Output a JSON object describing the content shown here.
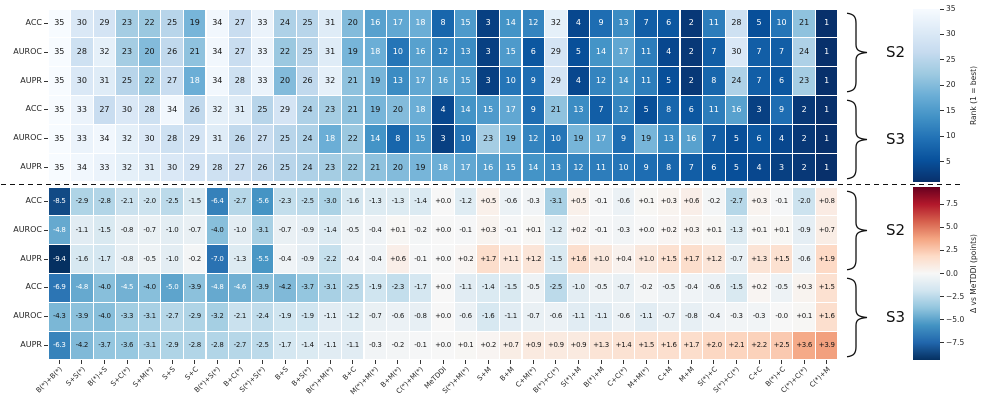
{
  "chart_data": {
    "type": "heatmap",
    "columns": [
      "B(*)+B(*)",
      "S+S(*)",
      "B(*)+S",
      "S+C(*)",
      "S+M(*)",
      "S+S",
      "S+C",
      "B(*)+S(*)",
      "B+C(*)",
      "S(*)+S(*)",
      "B+S",
      "B+S(*)",
      "B(*)+M(*)",
      "B+C",
      "M(*)+M(*)",
      "B+M(*)",
      "C(*)+M(*)",
      "MeTDDI",
      "S(*)+M(*)",
      "S+M",
      "B+M",
      "C+M(*)",
      "B(*)+C(*)",
      "S(*)+M",
      "B(*)+M",
      "C+C(*)",
      "M+M(*)",
      "C+M",
      "M+M",
      "S(*)+C",
      "S(*)+C(*)",
      "C+C",
      "B(*)+C",
      "C(*)+C(*)",
      "C(*)+M"
    ],
    "group_braces": [
      "S2",
      "S3",
      "S2",
      "S3"
    ],
    "top": {
      "metric_rows": [
        {
          "group": "S2",
          "label": "ACC",
          "values": [
            35,
            30,
            29,
            23,
            22,
            25,
            19,
            34,
            27,
            33,
            24,
            25,
            31,
            20,
            16,
            17,
            18,
            8,
            15,
            3,
            14,
            12,
            32,
            4,
            9,
            13,
            7,
            6,
            2,
            11,
            28,
            5,
            10,
            21,
            1
          ]
        },
        {
          "group": "S2",
          "label": "AUROC",
          "values": [
            35,
            28,
            32,
            23,
            20,
            26,
            21,
            34,
            27,
            33,
            22,
            25,
            31,
            19,
            18,
            10,
            16,
            12,
            13,
            3,
            15,
            6,
            29,
            5,
            14,
            17,
            11,
            4,
            2,
            7,
            30,
            7,
            7,
            24,
            1
          ]
        },
        {
          "group": "S2",
          "label": "AUPR",
          "values": [
            35,
            30,
            31,
            25,
            22,
            27,
            18,
            34,
            28,
            33,
            20,
            26,
            32,
            21,
            19,
            13,
            17,
            16,
            15,
            3,
            10,
            9,
            29,
            4,
            12,
            14,
            11,
            5,
            2,
            8,
            24,
            7,
            6,
            23,
            1
          ]
        },
        {
          "group": "S3",
          "label": "ACC",
          "values": [
            35,
            33,
            27,
            30,
            28,
            34,
            26,
            32,
            31,
            25,
            29,
            24,
            23,
            21,
            19,
            20,
            18,
            4,
            14,
            15,
            17,
            9,
            21,
            13,
            7,
            12,
            5,
            8,
            6,
            11,
            16,
            3,
            9,
            2,
            1
          ]
        },
        {
          "group": "S3",
          "label": "AUROC",
          "values": [
            35,
            33,
            34,
            32,
            30,
            28,
            29,
            31,
            26,
            27,
            25,
            24,
            18,
            22,
            14,
            8,
            15,
            3,
            10,
            23,
            19,
            12,
            10,
            19,
            17,
            9,
            19,
            13,
            16,
            7,
            5,
            6,
            4,
            2,
            1
          ]
        },
        {
          "group": "S3",
          "label": "AUPR",
          "values": [
            35,
            34,
            33,
            32,
            31,
            30,
            29,
            28,
            27,
            26,
            25,
            24,
            23,
            22,
            21,
            20,
            19,
            18,
            17,
            16,
            15,
            14,
            13,
            12,
            11,
            10,
            9,
            8,
            7,
            6,
            5,
            4,
            3,
            2,
            1
          ]
        }
      ],
      "colorbar": {
        "title": "Rank (1 = best)",
        "vmin": 1,
        "vmax": 35,
        "ticks": [
          "35",
          "30",
          "25",
          "20",
          "15",
          "10",
          "5"
        ],
        "colormap": [
          "#08306b",
          "#08519c",
          "#2171b5",
          "#4292c6",
          "#6baed6",
          "#9ecae1",
          "#c6dbef",
          "#deebf7",
          "#f7fbff"
        ]
      }
    },
    "bottom": {
      "metric_rows": [
        {
          "group": "S2",
          "label": "ACC",
          "values": [
            "-8.5",
            "-2.9",
            "-2.8",
            "-2.1",
            "-2.0",
            "-2.5",
            "-1.5",
            "-6.4",
            "-2.7",
            "-5.6",
            "-2.3",
            "-2.5",
            "-3.0",
            "-1.6",
            "-1.3",
            "-1.3",
            "-1.4",
            "+0.0",
            "-1.2",
            "+0.5",
            "-0.6",
            "-0.3",
            "-3.1",
            "+0.5",
            "-0.1",
            "-0.6",
            "+0.1",
            "+0.3",
            "+0.6",
            "-0.2",
            "-2.7",
            "+0.3",
            "-0.1",
            "-2.0",
            "+0.8"
          ]
        },
        {
          "group": "S2",
          "label": "AUROC",
          "values": [
            "-4.8",
            "-1.1",
            "-1.5",
            "-0.8",
            "-0.7",
            "-1.0",
            "-0.7",
            "-4.0",
            "-1.0",
            "-3.1",
            "-0.7",
            "-0.9",
            "-1.4",
            "-0.5",
            "-0.4",
            "+0.1",
            "-0.2",
            "+0.0",
            "-0.1",
            "+0.3",
            "-0.1",
            "+0.1",
            "-1.2",
            "+0.2",
            "-0.1",
            "-0.3",
            "+0.0",
            "+0.2",
            "+0.3",
            "+0.1",
            "-1.3",
            "+0.1",
            "+0.1",
            "-0.9",
            "+0.7"
          ]
        },
        {
          "group": "S2",
          "label": "AUPR",
          "values": [
            "-9.4",
            "-1.6",
            "-1.7",
            "-0.8",
            "-0.5",
            "-1.0",
            "-0.2",
            "-7.0",
            "-1.3",
            "-5.5",
            "-0.4",
            "-0.9",
            "-2.2",
            "-0.4",
            "-0.4",
            "+0.6",
            "-0.1",
            "+0.0",
            "+0.2",
            "+1.7",
            "+1.1",
            "+1.2",
            "-1.5",
            "+1.6",
            "+1.0",
            "+0.4",
            "+1.0",
            "+1.5",
            "+1.7",
            "+1.2",
            "-0.7",
            "+1.3",
            "+1.5",
            "-0.6",
            "+1.9"
          ]
        },
        {
          "group": "S3",
          "label": "ACC",
          "values": [
            "-6.9",
            "-4.8",
            "-4.0",
            "-4.5",
            "-4.0",
            "-5.0",
            "-3.9",
            "-4.8",
            "-4.6",
            "-3.9",
            "-4.2",
            "-3.7",
            "-3.1",
            "-2.5",
            "-1.9",
            "-2.3",
            "-1.7",
            "+0.0",
            "-1.1",
            "-1.4",
            "-1.5",
            "-0.5",
            "-2.5",
            "-1.0",
            "-0.5",
            "-0.7",
            "-0.2",
            "-0.5",
            "-0.4",
            "-0.6",
            "-1.5",
            "+0.2",
            "-0.5",
            "+0.3",
            "+1.5"
          ]
        },
        {
          "group": "S3",
          "label": "AUROC",
          "values": [
            "-4.3",
            "-3.9",
            "-4.0",
            "-3.3",
            "-3.1",
            "-2.7",
            "-2.9",
            "-3.2",
            "-2.1",
            "-2.4",
            "-1.9",
            "-1.9",
            "-1.1",
            "-1.2",
            "-0.7",
            "-0.6",
            "-0.8",
            "+0.0",
            "-0.6",
            "-1.6",
            "-1.1",
            "-0.7",
            "-0.6",
            "-1.1",
            "-1.1",
            "-0.6",
            "-1.1",
            "-0.7",
            "-0.8",
            "-0.4",
            "-0.3",
            "-0.3",
            "-0.0",
            "+0.1",
            "+1.6"
          ]
        },
        {
          "group": "S3",
          "label": "AUPR",
          "values": [
            "-6.3",
            "-4.2",
            "-3.7",
            "-3.6",
            "-3.1",
            "-2.9",
            "-2.8",
            "-2.8",
            "-2.7",
            "-2.5",
            "-1.7",
            "-1.4",
            "-1.1",
            "-1.1",
            "-0.3",
            "-0.2",
            "-0.1",
            "+0.0",
            "+0.1",
            "+0.2",
            "+0.7",
            "+0.9",
            "+0.9",
            "+0.9",
            "+1.3",
            "+1.4",
            "+1.5",
            "+1.6",
            "+1.7",
            "+2.0",
            "+2.1",
            "+2.2",
            "+2.5",
            "+3.6",
            "+3.9"
          ]
        }
      ],
      "colorbar": {
        "title": "Δ vs MeTDDI (points)",
        "vmin": -9.4,
        "vmax": 9.4,
        "ticks": [
          "7.5",
          "5.0",
          "2.5",
          "0.0",
          "−2.5",
          "−5.0",
          "−7.5"
        ],
        "colormap": [
          "#053061",
          "#2166ac",
          "#4393c3",
          "#92c5de",
          "#d1e5f0",
          "#f7f7f7",
          "#fddbc7",
          "#f4a582",
          "#d6604d",
          "#b2182b",
          "#67001f"
        ]
      }
    }
  }
}
